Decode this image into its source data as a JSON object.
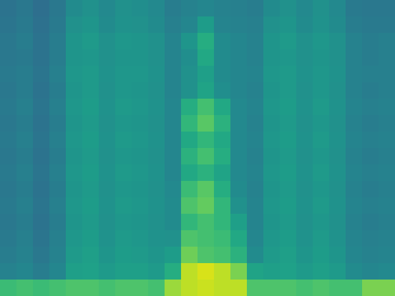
{
  "chart_data": {
    "type": "heatmap",
    "tick_labels": false,
    "color": "viridis",
    "zlim": [
      0,
      1
    ],
    "cells": [
      [
        0.38,
        0.4,
        0.36,
        0.4,
        0.48,
        0.5,
        0.47,
        0.5,
        0.49,
        0.47,
        0.42,
        0.44,
        0.46,
        0.44,
        0.43,
        0.42,
        0.48,
        0.5,
        0.47,
        0.5,
        0.47,
        0.41,
        0.4,
        0.4
      ],
      [
        0.39,
        0.41,
        0.37,
        0.41,
        0.5,
        0.52,
        0.48,
        0.51,
        0.5,
        0.48,
        0.43,
        0.46,
        0.55,
        0.45,
        0.44,
        0.43,
        0.5,
        0.52,
        0.48,
        0.51,
        0.48,
        0.42,
        0.41,
        0.41
      ],
      [
        0.4,
        0.42,
        0.38,
        0.42,
        0.52,
        0.54,
        0.5,
        0.53,
        0.52,
        0.5,
        0.45,
        0.52,
        0.62,
        0.48,
        0.46,
        0.44,
        0.52,
        0.54,
        0.5,
        0.53,
        0.5,
        0.44,
        0.42,
        0.43
      ],
      [
        0.4,
        0.41,
        0.38,
        0.42,
        0.52,
        0.53,
        0.5,
        0.52,
        0.52,
        0.5,
        0.45,
        0.49,
        0.6,
        0.48,
        0.46,
        0.44,
        0.52,
        0.53,
        0.5,
        0.52,
        0.5,
        0.44,
        0.42,
        0.43
      ],
      [
        0.41,
        0.42,
        0.39,
        0.43,
        0.53,
        0.54,
        0.51,
        0.53,
        0.53,
        0.51,
        0.45,
        0.5,
        0.56,
        0.48,
        0.46,
        0.45,
        0.53,
        0.54,
        0.51,
        0.53,
        0.51,
        0.44,
        0.43,
        0.43
      ],
      [
        0.4,
        0.42,
        0.38,
        0.42,
        0.52,
        0.54,
        0.5,
        0.53,
        0.52,
        0.5,
        0.45,
        0.5,
        0.58,
        0.49,
        0.46,
        0.44,
        0.52,
        0.54,
        0.5,
        0.53,
        0.5,
        0.44,
        0.42,
        0.43
      ],
      [
        0.41,
        0.43,
        0.39,
        0.43,
        0.53,
        0.55,
        0.51,
        0.54,
        0.53,
        0.51,
        0.46,
        0.62,
        0.7,
        0.6,
        0.47,
        0.45,
        0.53,
        0.55,
        0.51,
        0.54,
        0.51,
        0.45,
        0.43,
        0.44
      ],
      [
        0.4,
        0.42,
        0.38,
        0.42,
        0.52,
        0.54,
        0.5,
        0.53,
        0.52,
        0.5,
        0.46,
        0.66,
        0.74,
        0.64,
        0.47,
        0.44,
        0.52,
        0.54,
        0.5,
        0.53,
        0.5,
        0.44,
        0.42,
        0.43
      ],
      [
        0.41,
        0.43,
        0.39,
        0.43,
        0.53,
        0.55,
        0.51,
        0.54,
        0.53,
        0.51,
        0.46,
        0.6,
        0.66,
        0.6,
        0.47,
        0.45,
        0.53,
        0.55,
        0.51,
        0.54,
        0.51,
        0.45,
        0.43,
        0.44
      ],
      [
        0.4,
        0.42,
        0.38,
        0.42,
        0.52,
        0.54,
        0.5,
        0.53,
        0.52,
        0.5,
        0.46,
        0.64,
        0.7,
        0.62,
        0.47,
        0.44,
        0.52,
        0.54,
        0.5,
        0.53,
        0.5,
        0.44,
        0.42,
        0.43
      ],
      [
        0.41,
        0.43,
        0.39,
        0.43,
        0.53,
        0.55,
        0.51,
        0.54,
        0.53,
        0.51,
        0.46,
        0.6,
        0.64,
        0.58,
        0.47,
        0.45,
        0.53,
        0.55,
        0.51,
        0.54,
        0.51,
        0.45,
        0.43,
        0.44
      ],
      [
        0.4,
        0.42,
        0.38,
        0.42,
        0.52,
        0.54,
        0.5,
        0.53,
        0.52,
        0.5,
        0.47,
        0.68,
        0.74,
        0.62,
        0.48,
        0.44,
        0.52,
        0.54,
        0.5,
        0.53,
        0.5,
        0.44,
        0.42,
        0.43
      ],
      [
        0.41,
        0.43,
        0.39,
        0.43,
        0.53,
        0.55,
        0.51,
        0.54,
        0.53,
        0.51,
        0.48,
        0.72,
        0.76,
        0.66,
        0.5,
        0.45,
        0.53,
        0.55,
        0.51,
        0.54,
        0.51,
        0.45,
        0.43,
        0.44
      ],
      [
        0.4,
        0.42,
        0.38,
        0.42,
        0.52,
        0.54,
        0.5,
        0.53,
        0.52,
        0.5,
        0.48,
        0.66,
        0.7,
        0.66,
        0.56,
        0.45,
        0.52,
        0.54,
        0.5,
        0.53,
        0.5,
        0.44,
        0.42,
        0.43
      ],
      [
        0.41,
        0.43,
        0.39,
        0.43,
        0.53,
        0.55,
        0.51,
        0.54,
        0.53,
        0.51,
        0.5,
        0.72,
        0.7,
        0.68,
        0.6,
        0.46,
        0.53,
        0.55,
        0.51,
        0.54,
        0.51,
        0.45,
        0.43,
        0.44
      ],
      [
        0.42,
        0.44,
        0.4,
        0.44,
        0.54,
        0.56,
        0.52,
        0.55,
        0.54,
        0.52,
        0.55,
        0.78,
        0.72,
        0.7,
        0.64,
        0.48,
        0.54,
        0.56,
        0.52,
        0.55,
        0.52,
        0.46,
        0.44,
        0.45
      ],
      [
        0.44,
        0.46,
        0.42,
        0.46,
        0.56,
        0.57,
        0.54,
        0.56,
        0.56,
        0.54,
        0.62,
        0.9,
        0.94,
        0.9,
        0.8,
        0.58,
        0.56,
        0.57,
        0.54,
        0.56,
        0.54,
        0.48,
        0.46,
        0.47
      ],
      [
        0.68,
        0.7,
        0.68,
        0.7,
        0.72,
        0.72,
        0.7,
        0.72,
        0.72,
        0.7,
        0.85,
        0.9,
        0.92,
        0.9,
        0.9,
        0.72,
        0.72,
        0.72,
        0.7,
        0.72,
        0.7,
        0.7,
        0.8,
        0.8
      ]
    ]
  }
}
